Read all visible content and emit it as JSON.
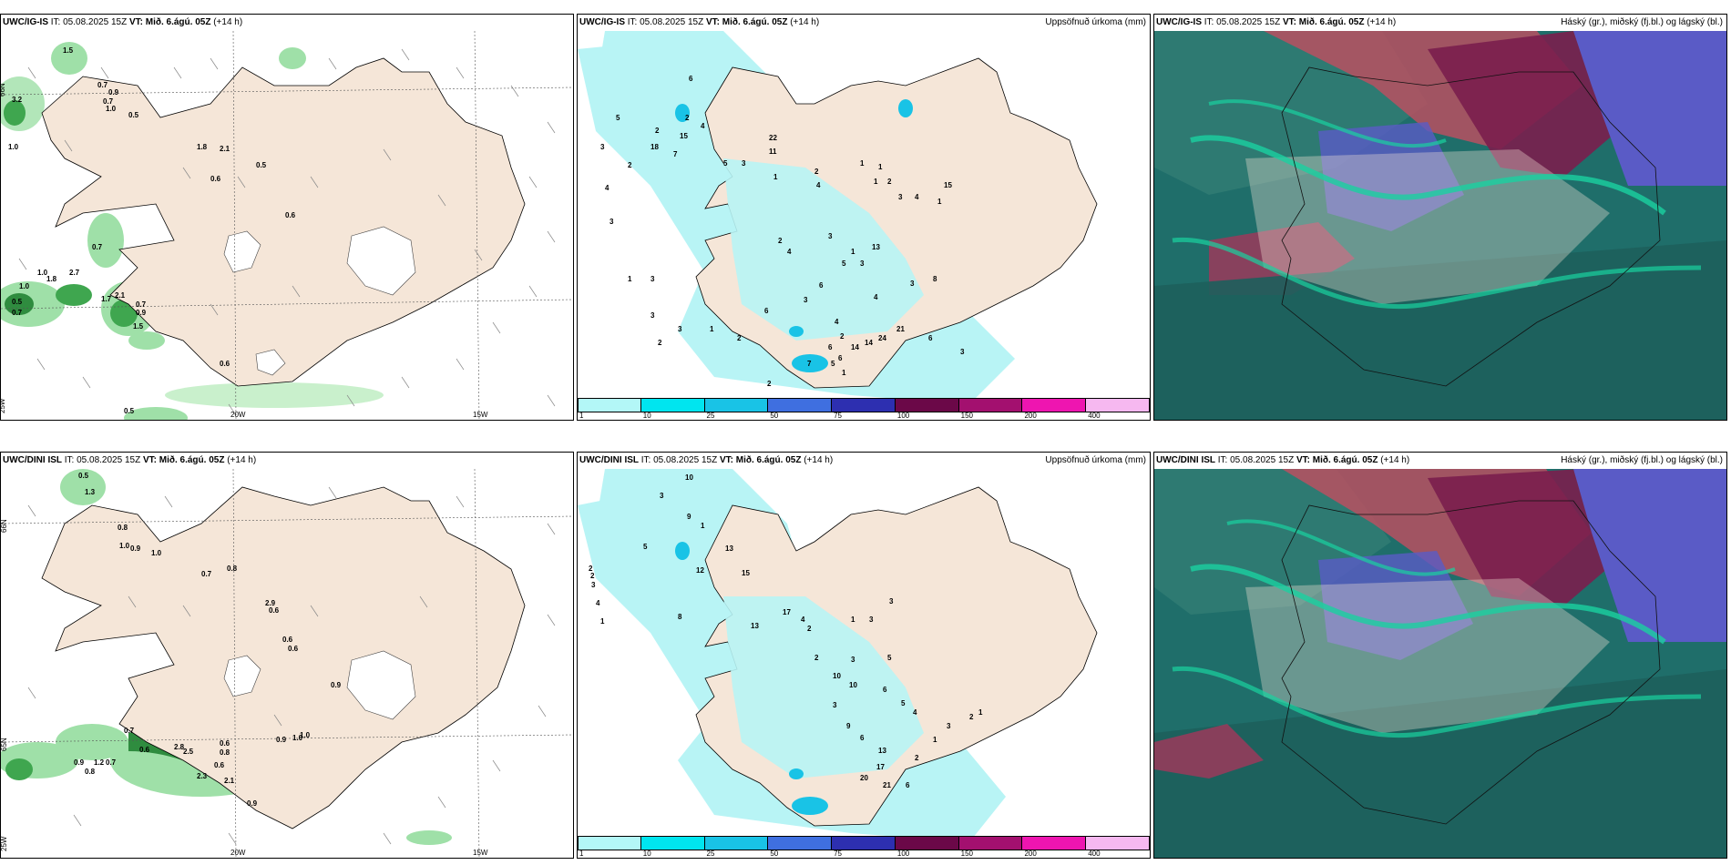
{
  "panels": [
    {
      "id": "p1",
      "model": "UWC/IG-IS",
      "it_label": "IT:",
      "it": "05.08.2025 15Z",
      "vt_label": "VT:",
      "vt": "Mið. 6.ágú. 05Z",
      "lead": "(+14 h)",
      "right": "",
      "values": [
        "1.5",
        "0.7",
        "3.2",
        "0.9",
        "0.7",
        "1.0",
        "0.5",
        "1.0",
        "1.8",
        "2.1",
        "0.6",
        "0.5",
        "0.6",
        "0.7",
        "1.0",
        "1.8",
        "1.0",
        "2.7",
        "0.5",
        "0.7",
        "1.7",
        "2.1",
        "0.7",
        "0.9",
        "1.5",
        "0.6",
        "0.5"
      ]
    },
    {
      "id": "p2",
      "model": "UWC/IG-IS",
      "it_label": "IT:",
      "it": "05.08.2025 15Z",
      "vt_label": "VT:",
      "vt": "Mið. 6.ágú. 05Z",
      "lead": "(+14 h)",
      "right": "Uppsöfnuð úrkoma (mm)",
      "values": [
        "5",
        "6",
        "3",
        "2",
        "2",
        "2",
        "4",
        "18",
        "15",
        "7",
        "5",
        "3",
        "4",
        "22",
        "11",
        "1",
        "1",
        "2",
        "4",
        "1",
        "3",
        "15",
        "1",
        "2",
        "1",
        "3",
        "4",
        "2",
        "4",
        "3",
        "1",
        "13",
        "5",
        "3",
        "4",
        "3",
        "8",
        "6",
        "3",
        "6",
        "4",
        "2",
        "6",
        "7",
        "5",
        "6",
        "14",
        "14",
        "24",
        "21",
        "6",
        "3",
        "2",
        "1",
        "2",
        "1",
        "3",
        "3",
        "1",
        "3",
        "2"
      ]
    },
    {
      "id": "p3",
      "model": "UWC/IG-IS",
      "it_label": "IT:",
      "it": "05.08.2025 15Z",
      "vt_label": "VT:",
      "vt": "Mið. 6.ágú. 05Z",
      "lead": "(+14 h)",
      "right": "Háský (gr.), miðský (fj.bl.) og lágský (bl.)",
      "values": []
    },
    {
      "id": "p4",
      "model": "UWC/DINI ISL",
      "it_label": "IT:",
      "it": "05.08.2025 15Z",
      "vt_label": "VT:",
      "vt": "Mið. 6.ágú. 05Z",
      "lead": "(+14 h)",
      "right": "",
      "values": [
        "0.5",
        "1.3",
        "0.8",
        "1.0",
        "0.9",
        "1.0",
        "0.7",
        "0.8",
        "0.6",
        "2.9",
        "0.6",
        "0.6",
        "0.9",
        "0.7",
        "0.9",
        "1.0",
        "1.0",
        "0.6",
        "0.8",
        "0.9",
        "0.8",
        "1.2",
        "0.7",
        "0.6",
        "2.8",
        "2.5",
        "0.6",
        "2.3",
        "2.1",
        "0.9"
      ]
    },
    {
      "id": "p5",
      "model": "UWC/DINI ISL",
      "it_label": "IT:",
      "it": "05.08.2025 15Z",
      "vt_label": "VT:",
      "vt": "Mið. 6.ágú. 05Z",
      "lead": "(+14 h)",
      "right": "Uppsöfnuð úrkoma (mm)",
      "values": [
        "10",
        "3",
        "9",
        "1",
        "13",
        "5",
        "12",
        "15",
        "2",
        "2",
        "3",
        "4",
        "1",
        "8",
        "13",
        "17",
        "4",
        "2",
        "1",
        "3",
        "3",
        "3",
        "5",
        "2",
        "10",
        "10",
        "6",
        "3",
        "5",
        "4",
        "9",
        "6",
        "13",
        "17",
        "20",
        "21",
        "6",
        "2",
        "1",
        "3",
        "2",
        "1"
      ]
    },
    {
      "id": "p6",
      "model": "UWC/DINI ISL",
      "it_label": "IT:",
      "it": "05.08.2025 15Z",
      "vt_label": "VT:",
      "vt": "Mið. 6.ágú. 05Z",
      "lead": "(+14 h)",
      "right": "Háský (gr.), miðský (fj.bl.) og lágský (bl.)",
      "values": []
    }
  ],
  "axis_labels": {
    "lat66": "66N",
    "lat65": "65N",
    "lon25": "25W",
    "lon20": "20W",
    "lon15": "15W"
  },
  "colorbar": {
    "ticks": [
      "1",
      "10",
      "25",
      "50",
      "75",
      "100",
      "150",
      "200",
      "400"
    ],
    "colors": [
      "#b3f7f7",
      "#00e5ef",
      "#19c3e6",
      "#3f6fe0",
      "#2d2fb0",
      "#6b0848",
      "#a3106f",
      "#ee15b0",
      "#f6b8f0"
    ]
  },
  "colors": {
    "land": "#f5e6d8",
    "precip_light": "#b8f4f5",
    "wind_green": "#3fbf5f",
    "cloud_high": "#0f6e55",
    "cloud_mid": "#5a5bc6",
    "cloud_low": "#b03050"
  }
}
